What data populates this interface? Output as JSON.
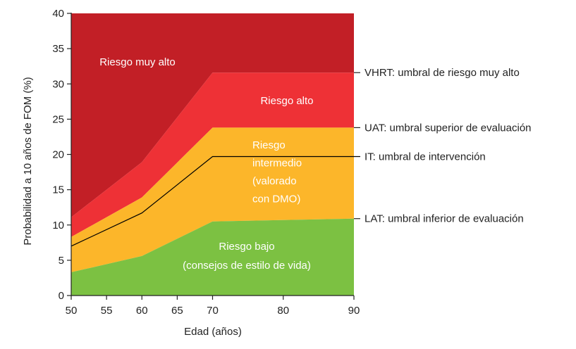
{
  "chart_data": {
    "type": "area",
    "title": "",
    "xlabel": "Edad (años)",
    "ylabel": "Probabilidad a 10 años de FOM (%)",
    "xlim": [
      50,
      90
    ],
    "ylim": [
      0,
      40
    ],
    "x_ticks": [
      50,
      55,
      60,
      65,
      70,
      80,
      90
    ],
    "y_ticks": [
      0,
      5,
      10,
      15,
      20,
      25,
      30,
      35,
      40
    ],
    "x": [
      50,
      60,
      70,
      90
    ],
    "thresholds": [
      {
        "key": "vhrt",
        "label": "VHRT: umbral de riesgo muy alto",
        "values": [
          11.1,
          18.9,
          31.6,
          31.6
        ],
        "color": "#c21f26"
      },
      {
        "key": "uat",
        "label": "UAT: umbral superior de evaluación",
        "values": [
          8.3,
          13.9,
          23.8,
          23.8
        ],
        "color": "#ee3136"
      },
      {
        "key": "it",
        "label": "IT: umbral de intervención",
        "values": [
          7.0,
          11.7,
          19.7,
          19.7
        ],
        "color": "#000000",
        "line_only": true
      },
      {
        "key": "lat",
        "label": "LAT: umbral inferior de evaluación",
        "values": [
          3.3,
          5.6,
          10.5,
          10.9
        ],
        "color": "#fcb62a"
      }
    ],
    "zones": [
      {
        "key": "very_high",
        "lines": [
          "Riesgo muy alto"
        ],
        "color": "#c21f26"
      },
      {
        "key": "high",
        "lines": [
          "Riesgo alto"
        ],
        "color": "#ee3136"
      },
      {
        "key": "intermediate",
        "lines": [
          "Riesgo",
          "intermedio",
          "(valorado",
          "con DMO)"
        ],
        "color": "#fcb62a"
      },
      {
        "key": "low",
        "lines": [
          "Riesgo bajo",
          "(consejos de estilo de vida)"
        ],
        "color": "#7cc142"
      }
    ]
  }
}
